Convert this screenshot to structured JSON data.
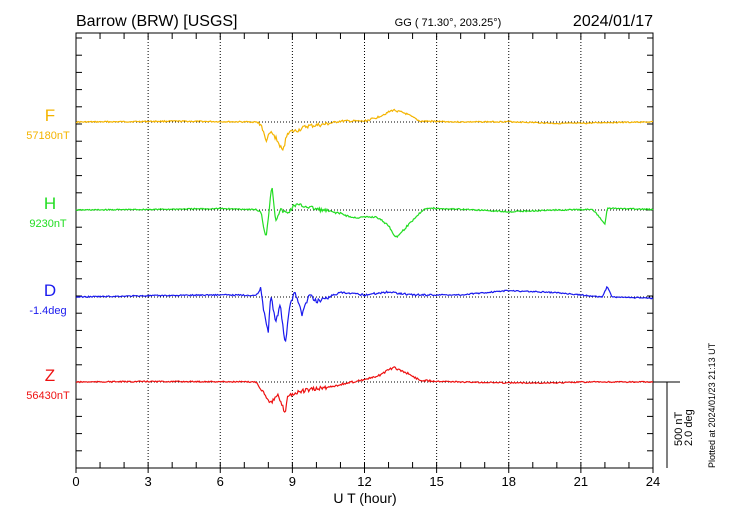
{
  "header": {
    "station": "Barrow (BRW)  [USGS]",
    "coords": "GG ( 71.30°, 203.25°)",
    "date": "2024/01/17"
  },
  "footer": {
    "plotted": "Plotted at 2024/01/23 21:13 UT",
    "scale_nt": "500 nT",
    "scale_deg": "2.0 deg"
  },
  "chart_data": {
    "type": "line",
    "xlabel": "U T (hour)",
    "xlim": [
      0,
      24
    ],
    "xticks": [
      "0",
      "3",
      "6",
      "9",
      "12",
      "15",
      "18",
      "21",
      "24"
    ],
    "grid": "dotted vertical every 3 h",
    "scale": {
      "nT_per_bar": 500,
      "deg_per_bar": 2.0
    },
    "series": [
      {
        "name": "F",
        "base": "57180nT",
        "unit": "nT",
        "color": "#f4b400",
        "points": [
          [
            0,
            0
          ],
          [
            2,
            2
          ],
          [
            4,
            5
          ],
          [
            6,
            2
          ],
          [
            7.5,
            0
          ],
          [
            7.7,
            -15
          ],
          [
            7.9,
            -110
          ],
          [
            8.1,
            -60
          ],
          [
            8.3,
            -90
          ],
          [
            8.6,
            -170
          ],
          [
            8.8,
            -60
          ],
          [
            9.2,
            -50
          ],
          [
            9.6,
            -25
          ],
          [
            10.3,
            -15
          ],
          [
            11,
            5
          ],
          [
            12,
            5
          ],
          [
            12.5,
            25
          ],
          [
            13.2,
            70
          ],
          [
            13.7,
            50
          ],
          [
            14.3,
            5
          ],
          [
            16,
            0
          ],
          [
            18,
            2
          ],
          [
            20,
            -8
          ],
          [
            21,
            -8
          ],
          [
            22,
            -3
          ],
          [
            24,
            0
          ]
        ]
      },
      {
        "name": "H",
        "base": "9230nT",
        "unit": "nT",
        "color": "#22dd22",
        "points": [
          [
            0,
            0
          ],
          [
            3,
            3
          ],
          [
            6,
            8
          ],
          [
            7.5,
            3
          ],
          [
            7.7,
            -20
          ],
          [
            7.9,
            -160
          ],
          [
            8.0,
            -40
          ],
          [
            8.15,
            150
          ],
          [
            8.3,
            -60
          ],
          [
            8.5,
            0
          ],
          [
            8.8,
            -20
          ],
          [
            9.1,
            30
          ],
          [
            9.6,
            20
          ],
          [
            10,
            5
          ],
          [
            11,
            -20
          ],
          [
            11.5,
            -45
          ],
          [
            12.5,
            -40
          ],
          [
            13,
            -90
          ],
          [
            13.3,
            -160
          ],
          [
            13.6,
            -120
          ],
          [
            14,
            -60
          ],
          [
            14.5,
            10
          ],
          [
            16,
            5
          ],
          [
            18,
            -10
          ],
          [
            20,
            0
          ],
          [
            21.5,
            3
          ],
          [
            22,
            -80
          ],
          [
            22.1,
            10
          ],
          [
            24,
            3
          ]
        ]
      },
      {
        "name": "D",
        "base": "-1.4deg",
        "unit": "deg",
        "color": "#1a1aee",
        "points": [
          [
            0,
            0
          ],
          [
            3,
            0.03
          ],
          [
            6,
            0.05
          ],
          [
            7.5,
            0.04
          ],
          [
            7.7,
            0.2
          ],
          [
            7.8,
            -0.3
          ],
          [
            8.0,
            -0.8
          ],
          [
            8.1,
            0.1
          ],
          [
            8.3,
            -0.6
          ],
          [
            8.5,
            -0.2
          ],
          [
            8.7,
            -1.1
          ],
          [
            8.9,
            -0.2
          ],
          [
            9.1,
            0.15
          ],
          [
            9.4,
            -0.4
          ],
          [
            9.7,
            0.05
          ],
          [
            10,
            -0.1
          ],
          [
            11,
            0.1
          ],
          [
            12,
            0.05
          ],
          [
            13,
            0.12
          ],
          [
            14,
            0.05
          ],
          [
            16,
            0.05
          ],
          [
            17,
            0.1
          ],
          [
            18,
            0.15
          ],
          [
            20,
            0.1
          ],
          [
            21.9,
            0
          ],
          [
            22.1,
            0.25
          ],
          [
            22.3,
            0
          ],
          [
            24,
            -0.03
          ]
        ]
      },
      {
        "name": "Z",
        "base": "56430nT",
        "unit": "nT",
        "color": "#ee1111",
        "points": [
          [
            0,
            0
          ],
          [
            3,
            3
          ],
          [
            6,
            2
          ],
          [
            7.5,
            0
          ],
          [
            7.8,
            -60
          ],
          [
            8.1,
            -120
          ],
          [
            8.4,
            -80
          ],
          [
            8.7,
            -180
          ],
          [
            8.8,
            -80
          ],
          [
            9.5,
            -50
          ],
          [
            10.5,
            -30
          ],
          [
            11.5,
            0
          ],
          [
            12.5,
            30
          ],
          [
            13.2,
            85
          ],
          [
            13.8,
            50
          ],
          [
            14.3,
            10
          ],
          [
            16,
            0
          ],
          [
            18,
            -5
          ],
          [
            20,
            -5
          ],
          [
            21,
            0
          ],
          [
            24,
            0
          ]
        ]
      }
    ]
  }
}
